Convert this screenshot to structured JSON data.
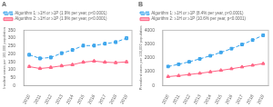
{
  "chart_data": [
    {
      "type": "line",
      "title": "A",
      "ylabel": "Incident cases per 100,000 population",
      "x": [
        2010,
        2011,
        2012,
        2013,
        2014,
        2015,
        2016,
        2017,
        2018,
        2019
      ],
      "xlim": [
        2009.5,
        2019.5
      ],
      "xticks": [
        2010,
        2011,
        2012,
        2013,
        2014,
        2015,
        2016,
        2017,
        2018,
        2019
      ],
      "ylim": [
        0,
        350
      ],
      "yticks": [
        0,
        50,
        100,
        150,
        200,
        250,
        300,
        350
      ],
      "grid": false,
      "legend": "upper left",
      "series": [
        {
          "name": "Algorithm 1: ≥1H or ≥1P (1.9% per year, p<0.0001)",
          "values": [
            195,
            172,
            178,
            205,
            225,
            253,
            253,
            265,
            275,
            300
          ],
          "errors": [
            8,
            8,
            8,
            8,
            8,
            8,
            8,
            8,
            8,
            10
          ],
          "marker": "square",
          "line_style": "dashed"
        },
        {
          "name": "Algorithm 2: ≥1H or ≥1P (1.9% per year, p<0.0001)",
          "values": [
            120,
            108,
            115,
            125,
            132,
            148,
            155,
            148,
            145,
            150
          ],
          "errors": [
            6,
            6,
            6,
            6,
            6,
            6,
            6,
            6,
            6,
            6
          ],
          "marker": "triangle",
          "line_style": "solid"
        }
      ]
    },
    {
      "type": "line",
      "title": "B",
      "ylabel": "Prevalent cases per 100,000 population",
      "x": [
        2010,
        2011,
        2012,
        2013,
        2014,
        2015,
        2016,
        2017,
        2018,
        2019
      ],
      "xlim": [
        2009.5,
        2019.5
      ],
      "xticks": [
        2010,
        2011,
        2012,
        2013,
        2014,
        2015,
        2016,
        2017,
        2018,
        2019
      ],
      "ylim": [
        0,
        4000
      ],
      "yticks": [
        0,
        1000,
        2000,
        3000,
        4000
      ],
      "grid": false,
      "legend": "upper left",
      "series": [
        {
          "name": "Algorithm 1: ≥1H or ≥1P (8.4% per year, p<0.0001)",
          "values": [
            1380,
            1540,
            1720,
            1930,
            2155,
            2400,
            2670,
            2970,
            3290,
            3640
          ],
          "errors": [
            35,
            38,
            42,
            46,
            50,
            55,
            60,
            65,
            70,
            75
          ],
          "marker": "square",
          "line_style": "dashed"
        },
        {
          "name": "Algorithm 2: ≥1H or ≥1P (10.6% per year, p<0.0001)",
          "values": [
            650,
            715,
            800,
            890,
            990,
            1100,
            1215,
            1345,
            1470,
            1590
          ],
          "errors": [
            22,
            24,
            26,
            28,
            30,
            32,
            35,
            38,
            40,
            42
          ],
          "marker": "triangle",
          "line_style": "solid"
        }
      ]
    }
  ]
}
